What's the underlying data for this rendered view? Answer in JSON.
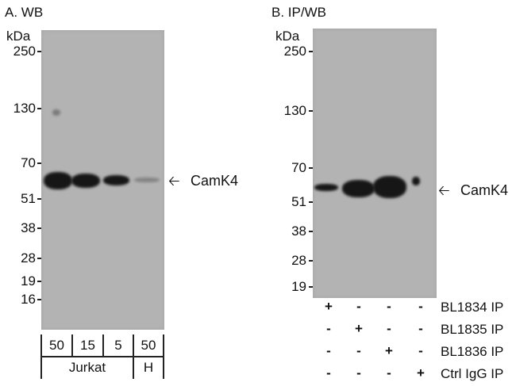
{
  "panel_a": {
    "title": "A. WB",
    "unit": "kDa",
    "markers": [
      "250",
      "130",
      "70",
      "51",
      "38",
      "28",
      "19",
      "16"
    ],
    "target": "CamK4",
    "lanes": [
      "50",
      "15",
      "5",
      "50"
    ],
    "groups": [
      "Jurkat",
      "H"
    ]
  },
  "panel_b": {
    "title": "B. IP/WB",
    "unit": "kDa",
    "markers": [
      "250",
      "130",
      "70",
      "51",
      "38",
      "28",
      "19"
    ],
    "target": "CamK4",
    "rows": [
      {
        "label": "BL1834 IP",
        "values": [
          "+",
          "-",
          "-",
          "-"
        ]
      },
      {
        "label": "BL1835 IP",
        "values": [
          "-",
          "+",
          "-",
          "-"
        ]
      },
      {
        "label": "BL1836 IP",
        "values": [
          "-",
          "-",
          "+",
          "-"
        ]
      },
      {
        "label": "Ctrl IgG IP",
        "values": [
          "-",
          "-",
          "-",
          "+"
        ]
      }
    ]
  },
  "colors": {
    "membrane": "#b3b3b3",
    "band": "#161616"
  }
}
